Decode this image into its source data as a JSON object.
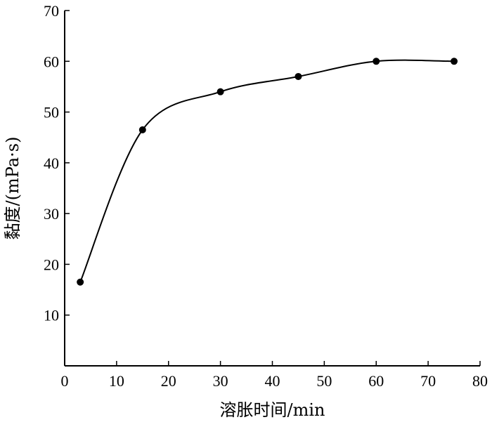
{
  "chart_data": {
    "type": "line",
    "title": "",
    "xlabel": "溶胀时间/min",
    "ylabel": "黏度/(mPa·s)",
    "xlim": [
      0,
      80
    ],
    "ylim": [
      0,
      70
    ],
    "xticks": [
      0,
      10,
      20,
      30,
      40,
      50,
      60,
      70,
      80
    ],
    "yticks": [
      10,
      20,
      30,
      40,
      50,
      60,
      70
    ],
    "grid": false,
    "series": [
      {
        "x": [
          3,
          15,
          30,
          45,
          60,
          75
        ],
        "y": [
          16.5,
          46.5,
          54,
          57,
          60,
          60
        ],
        "smooth": true,
        "marker": "circle",
        "color": "#000000"
      }
    ]
  }
}
